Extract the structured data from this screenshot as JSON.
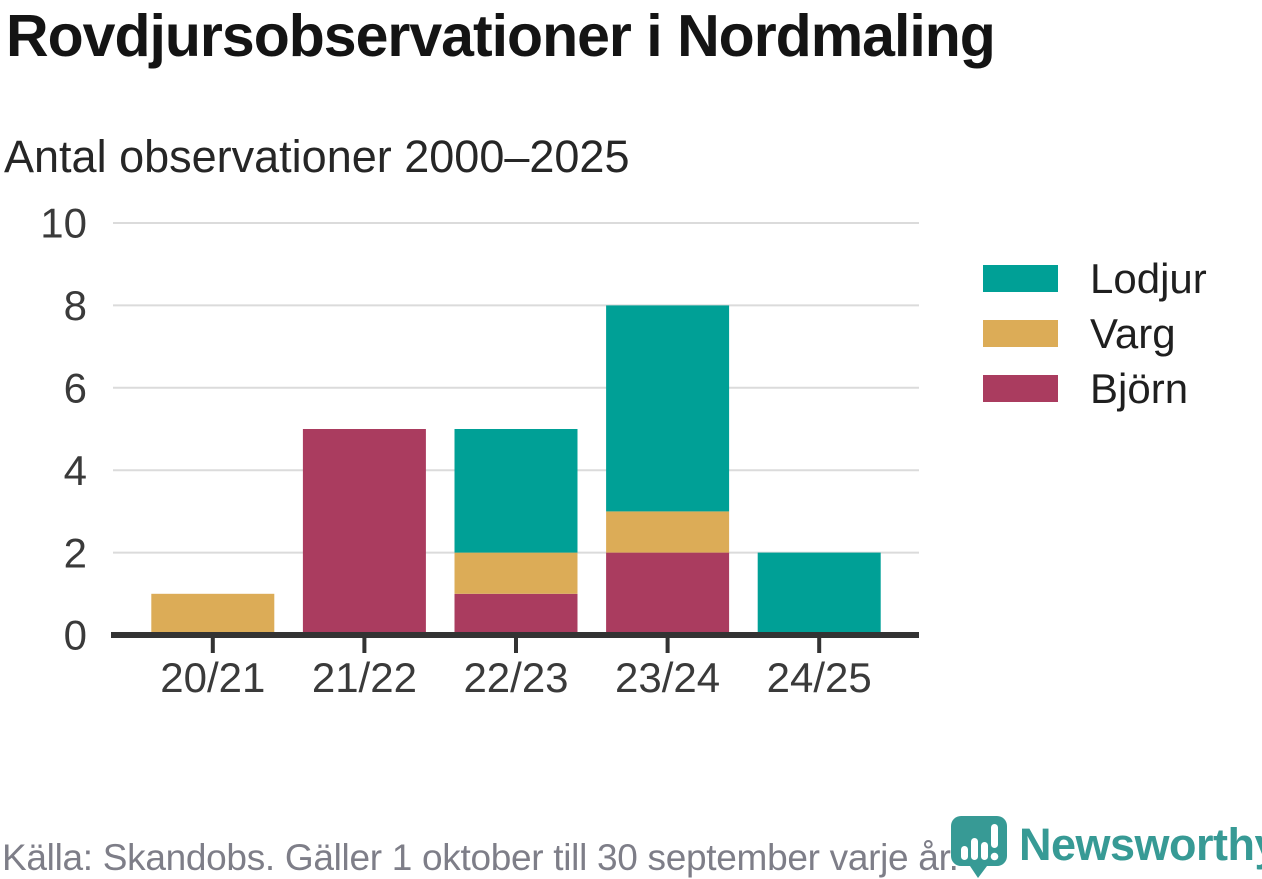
{
  "header": {
    "title": "Rovdjursobservationer i Nordmaling",
    "subtitle": "Antal observationer 2000–2025"
  },
  "chart_data": {
    "type": "bar",
    "stacked": true,
    "title": "Rovdjursobservationer i Nordmaling",
    "subtitle": "Antal observationer 2000–2025",
    "categories": [
      "20/21",
      "21/22",
      "22/23",
      "23/24",
      "24/25"
    ],
    "series": [
      {
        "name": "Lodjur",
        "color": "#00A096",
        "values": [
          0,
          0,
          3,
          5,
          2
        ]
      },
      {
        "name": "Varg",
        "color": "#DCAC57",
        "values": [
          1,
          0,
          1,
          1,
          0
        ]
      },
      {
        "name": "Björn",
        "color": "#AA3C5F",
        "values": [
          0,
          5,
          1,
          2,
          0
        ]
      }
    ],
    "stack_order_bottom_to_top": [
      "Björn",
      "Varg",
      "Lodjur"
    ],
    "totals_by_category": [
      1,
      5,
      5,
      8,
      2
    ],
    "ylim": [
      0,
      10
    ],
    "yticks": [
      0,
      2,
      4,
      6,
      8,
      10
    ],
    "grid": "horizontal",
    "legend_position": "right"
  },
  "footer": {
    "source_note": "Källa: Skandobs. Gäller 1 oktober till 30 september varje år.",
    "brand_name": "Newsworthy"
  },
  "colors": {
    "lodjur": "#00A096",
    "varg": "#DCAC57",
    "bjorn": "#AA3C5F",
    "grid": "#DBDBDB",
    "axis": "#333333",
    "tick_text": "#3A3A3A",
    "title_text": "#141414",
    "subtitle_text": "#262626",
    "footer_text": "#7E7E88",
    "logo_teal": "#379A95"
  }
}
